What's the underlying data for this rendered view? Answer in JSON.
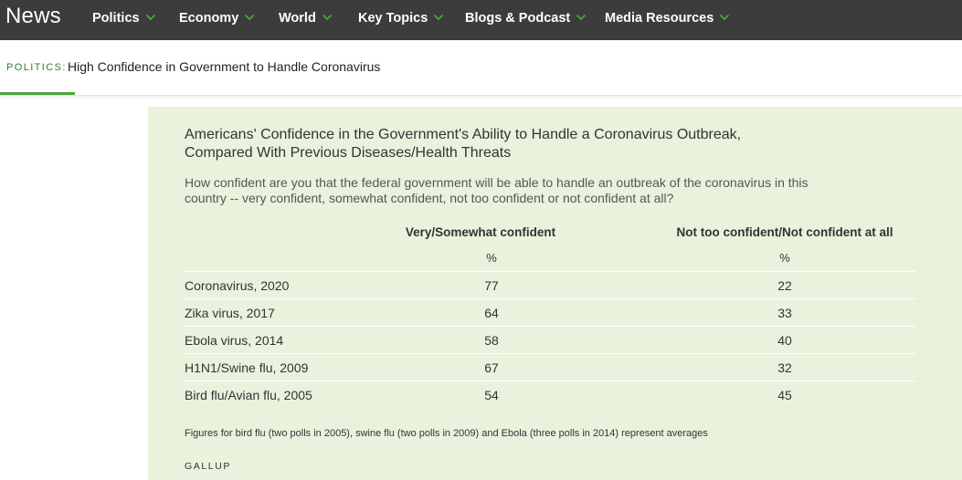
{
  "nav": {
    "brand": "News",
    "items": [
      {
        "label": "Politics"
      },
      {
        "label": "Economy"
      },
      {
        "label": "World"
      },
      {
        "label": "Key Topics"
      },
      {
        "label": "Blogs & Podcast"
      },
      {
        "label": "Media Resources"
      }
    ],
    "chevron_color": "#4aa53a"
  },
  "subheader": {
    "section": "POLITICS:",
    "title": "High Confidence in Government to Handle Coronavirus"
  },
  "chart_data": {
    "type": "table",
    "title": "Americans' Confidence in the Government's Ability to Handle a Coronavirus Outbreak, Compared With Previous Diseases/Health Threats",
    "question": "How confident are you that the federal government will be able to handle an outbreak of the coronavirus in this country -- very confident, somewhat confident, not too confident or not confident at all?",
    "columns": [
      "Very/Somewhat confident",
      "Not too confident/Not confident at all"
    ],
    "unit": "%",
    "rows": [
      {
        "label": "Coronavirus, 2020",
        "values": [
          77,
          22
        ]
      },
      {
        "label": "Zika virus, 2017",
        "values": [
          64,
          33
        ]
      },
      {
        "label": "Ebola virus, 2014",
        "values": [
          58,
          40
        ]
      },
      {
        "label": "H1N1/Swine flu, 2009",
        "values": [
          67,
          32
        ]
      },
      {
        "label": "Bird flu/Avian flu, 2005",
        "values": [
          54,
          45
        ]
      }
    ],
    "footnote": "Figures for bird flu (two polls in 2005), swine flu (two polls in 2009) and Ebola (three polls in 2014) represent averages",
    "source": "GALLUP",
    "panel_color": "#eaf2dd"
  }
}
